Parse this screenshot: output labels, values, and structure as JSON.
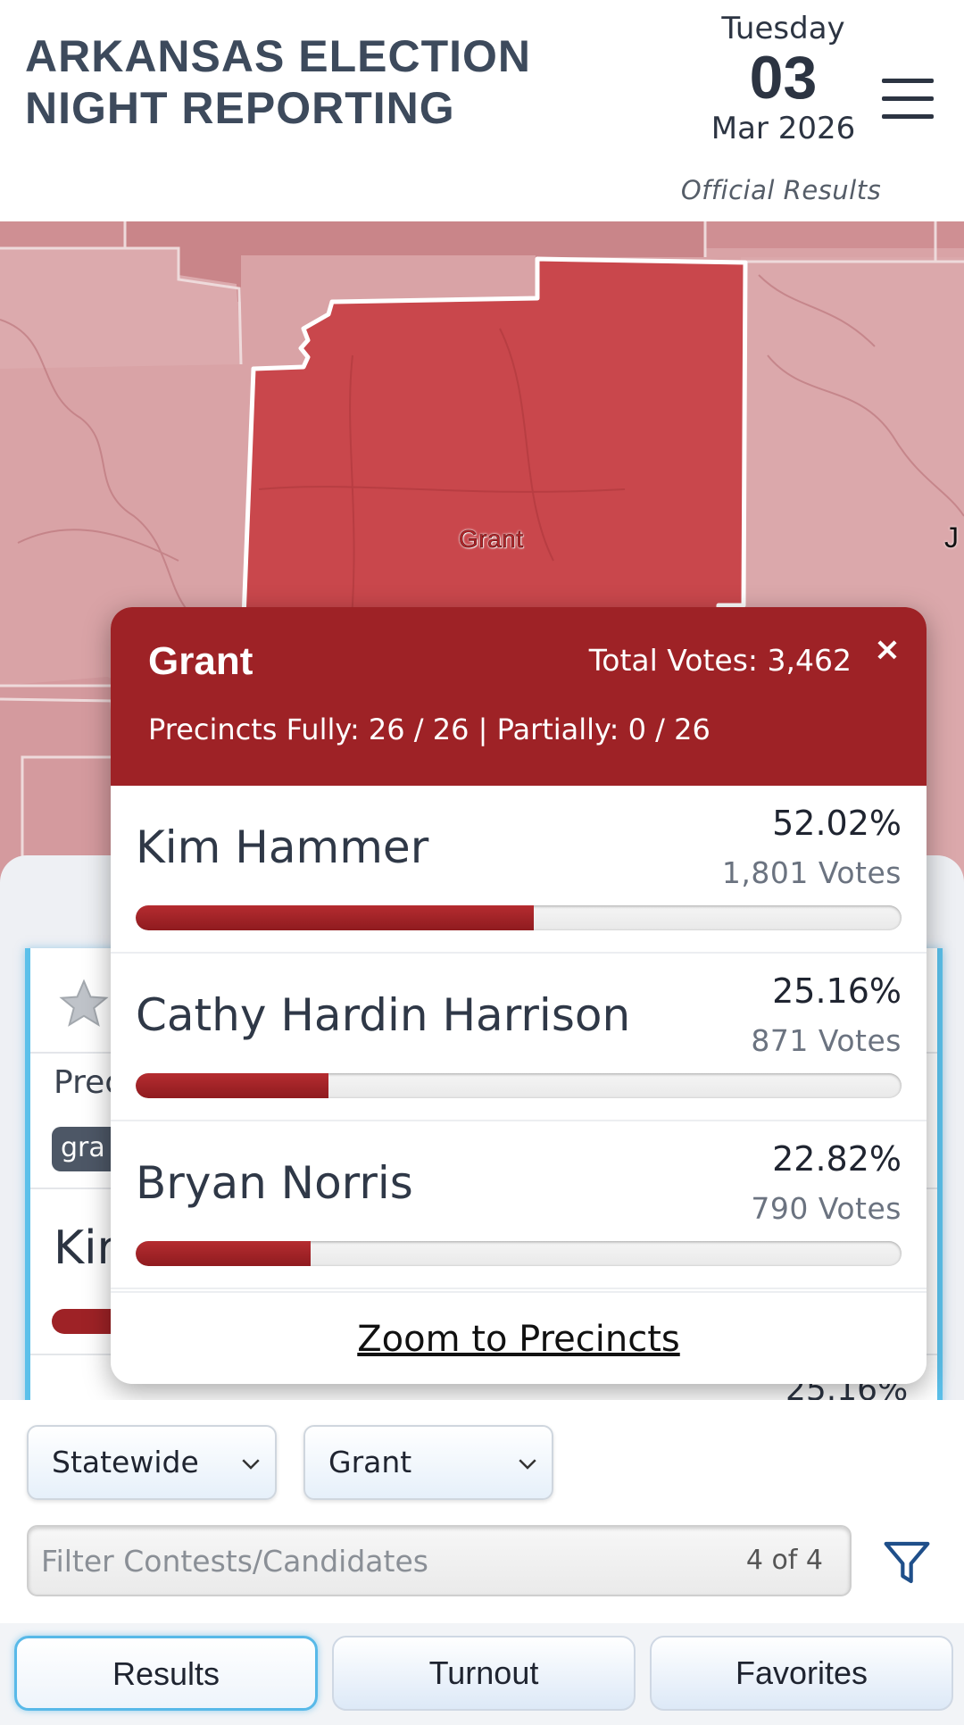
{
  "header": {
    "title": "ARKANSAS ELECTION NIGHT REPORTING",
    "date": {
      "weekday": "Tuesday",
      "day": "03",
      "month_year": "Mar 2026"
    },
    "status": "Official Results",
    "menu_icon": "hamburger-menu-icon"
  },
  "map": {
    "county_label": "Grant",
    "edge_label": "J",
    "colors": {
      "base": "#d9a3a6",
      "highlight": "#c9474c",
      "border": "#ffffff"
    }
  },
  "popup": {
    "county": "Grant",
    "total_votes": "Total Votes: 3,462",
    "close": "×",
    "precincts": "Precincts Fully: 26 / 26 | Partially: 0 / 26",
    "candidates": [
      {
        "name": "Kim Hammer",
        "percent": "52.02%",
        "votes": "1,801 Votes",
        "share": 52.02
      },
      {
        "name": "Cathy Hardin Harrison",
        "percent": "25.16%",
        "votes": "871 Votes",
        "share": 25.16
      },
      {
        "name": "Bryan Norris",
        "percent": "22.82%",
        "votes": "790 Votes",
        "share": 22.82
      }
    ],
    "zoom_link": "Zoom to Precincts",
    "accent": "#9e2226"
  },
  "background_card": {
    "precincts_fragment": "Prec",
    "chip_fragment": "gra",
    "name_fragment": "Kir",
    "percent_fragment": "25.16%"
  },
  "filters": {
    "scope_select": "Statewide",
    "county_select": "Grant",
    "search_placeholder": "Filter Contests/Candidates",
    "search_count": "4 of 4"
  },
  "tabs": [
    {
      "label": "Results",
      "active": true
    },
    {
      "label": "Turnout",
      "active": false
    },
    {
      "label": "Favorites",
      "active": false
    }
  ]
}
